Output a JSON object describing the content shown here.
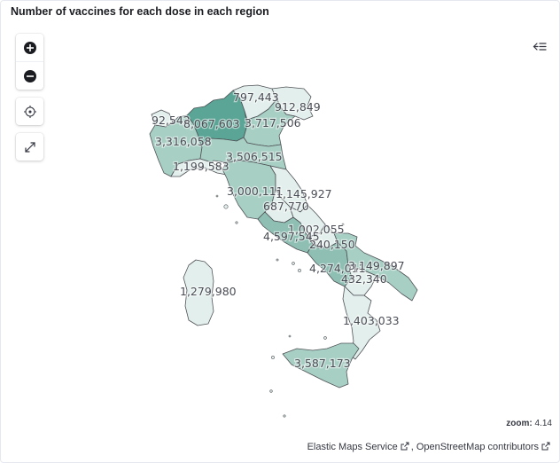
{
  "panel": {
    "title": "Number of vaccines for each dose in each region"
  },
  "controls": {
    "zoom_in": "plus-icon",
    "zoom_out": "minus-icon",
    "set_view": "crosshair-icon",
    "fullscreen": "expand-icon",
    "layers_menu": "collapse-layers-icon"
  },
  "status": {
    "zoom_label": "zoom:",
    "zoom_value": "4.14"
  },
  "attribution": {
    "ems": "Elastic Maps Service",
    "separator": ", ",
    "osm": "OpenStreetMap contributors"
  },
  "colors": {
    "lowest": "#e3efec",
    "low": "#c4ddd6",
    "mid": "#a8cfc4",
    "high": "#8ebfb2",
    "highest": "#5aa595",
    "border": "#4f5257"
  },
  "regions": [
    {
      "name": "Trentino-Alto Adige",
      "value": "797,443"
    },
    {
      "name": "Friuli-Venezia Giulia",
      "value": "912,849"
    },
    {
      "name": "Valle d'Aosta",
      "value": "92,542"
    },
    {
      "name": "Lombardia",
      "value": "8,067,603"
    },
    {
      "name": "Veneto",
      "value": "3,717,506"
    },
    {
      "name": "Piemonte",
      "value": "3,316,058"
    },
    {
      "name": "Emilia-Romagna",
      "value": "3,506,515"
    },
    {
      "name": "Liguria",
      "value": "1,199,583"
    },
    {
      "name": "Toscana",
      "value": "3,000,111"
    },
    {
      "name": "Marche",
      "value": "1,145,927"
    },
    {
      "name": "Umbria",
      "value": "687,770"
    },
    {
      "name": "Abruzzo",
      "value": "1,002,055"
    },
    {
      "name": "Lazio",
      "value": "4,597,545"
    },
    {
      "name": "Molise",
      "value": "240,150"
    },
    {
      "name": "Campania",
      "value": "4,274,011"
    },
    {
      "name": "Puglia",
      "value": "3,149,897"
    },
    {
      "name": "Basilicata",
      "value": "432,340"
    },
    {
      "name": "Sardegna",
      "value": "1,279,980"
    },
    {
      "name": "Calabria",
      "value": "1,403,033"
    },
    {
      "name": "Sicilia",
      "value": "3,587,173"
    }
  ]
}
